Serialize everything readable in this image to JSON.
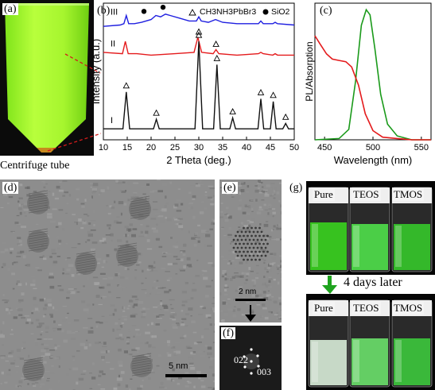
{
  "figure": {
    "panel_a": {
      "label": "(a)",
      "caption": "Centrifuge tube"
    },
    "panel_b": {
      "label": "(b)",
      "legend_triangle": "CH3NH3PbBr3",
      "legend_circle": "SiO2",
      "curve_labels": [
        "III",
        "II",
        "I"
      ]
    },
    "panel_c": {
      "label": "(c)"
    },
    "panel_d": {
      "label": "(d)",
      "scale_bar": "5 nm"
    },
    "panel_e": {
      "label": "(e)",
      "scale_bar": "2 nm"
    },
    "panel_f": {
      "label": "(f)",
      "index_1": "022",
      "index_2": "003"
    },
    "panel_g": {
      "label": "(g)",
      "vials_top": [
        "Pure",
        "TEOS",
        "TMOS"
      ],
      "vials_bottom": [
        "Pure",
        "TEOS",
        "TMOS"
      ],
      "arrow_text": "4 days later"
    }
  },
  "chart_data": [
    {
      "type": "line",
      "panel": "b",
      "xlabel": "2 Theta (deg.)",
      "ylabel": "Intensity (a.u.)",
      "xlim": [
        10,
        50
      ],
      "xticks": [
        10,
        15,
        20,
        25,
        30,
        35,
        40,
        45,
        50
      ],
      "x_tick_labels": [
        "10",
        "15",
        "20",
        "25",
        "30",
        "35",
        "40",
        "45",
        "50"
      ],
      "ylim": [
        0,
        100
      ],
      "series": [
        {
          "name": "III",
          "color": "#1f1fe0",
          "x": [
            10,
            13.5,
            14.3,
            14.8,
            15.3,
            16.5,
            18,
            20,
            21,
            22,
            23,
            24,
            26,
            28,
            29.5,
            30,
            30.5,
            32,
            33.5,
            35,
            38,
            42.5,
            43,
            43.5,
            45.5,
            46,
            46.5,
            50
          ],
          "y": [
            83,
            84,
            85,
            91,
            85,
            85,
            86,
            88,
            91,
            90,
            92,
            91,
            89,
            87,
            87,
            90,
            87,
            86,
            88,
            86,
            85,
            85,
            87,
            85,
            85,
            86,
            85,
            84
          ]
        },
        {
          "name": "II",
          "color": "#e41a1c",
          "x": [
            10,
            14,
            14.6,
            15.2,
            17,
            20,
            25,
            29,
            29.8,
            30.6,
            33,
            33.6,
            34.2,
            38,
            42.5,
            43,
            43.5,
            45.5,
            46,
            46.5,
            50
          ],
          "y": [
            64,
            63,
            72,
            63,
            63,
            62,
            63,
            64,
            75,
            64,
            63,
            66,
            63,
            62,
            63,
            64,
            63,
            62,
            63,
            62,
            62
          ]
        },
        {
          "name": "I",
          "color": "#111111",
          "x": [
            10,
            14.1,
            14.8,
            15.5,
            20.5,
            21.1,
            21.7,
            29.2,
            30.0,
            30.8,
            33.1,
            33.8,
            34.5,
            36.5,
            37.1,
            37.7,
            42.4,
            43.0,
            43.6,
            45.0,
            45.6,
            46.2,
            47.6,
            48.2,
            48.8,
            50
          ],
          "y": [
            8,
            8,
            35,
            8,
            8,
            15,
            8,
            8,
            72,
            8,
            8,
            55,
            8,
            8,
            16,
            8,
            8,
            30,
            8,
            8,
            28,
            8,
            8,
            12,
            8,
            8
          ]
        }
      ],
      "triangle_markers_x": [
        14.8,
        21.1,
        30.0,
        33.8,
        37.1,
        43.0,
        45.6,
        48.2
      ],
      "circle_markers_x": [
        18.5,
        22.5
      ]
    },
    {
      "type": "line",
      "panel": "c",
      "xlabel": "Wavelength (nm)",
      "ylabel": "PL/Absorption",
      "xlim": [
        440,
        560
      ],
      "xticks": [
        450,
        500,
        550
      ],
      "x_tick_labels": [
        "450",
        "500",
        "550"
      ],
      "ylim": [
        0,
        1.05
      ],
      "series": [
        {
          "name": "PL",
          "color": "#1a9a1a",
          "x": [
            440,
            465,
            475,
            482,
            488,
            493,
            497,
            502,
            508,
            515,
            525,
            540,
            560
          ],
          "y": [
            0.0,
            0.01,
            0.08,
            0.45,
            0.88,
            1.0,
            0.96,
            0.7,
            0.35,
            0.12,
            0.03,
            0.0,
            0.0
          ]
        },
        {
          "name": "Absorption",
          "color": "#e41a1c",
          "x": [
            440,
            445,
            452,
            458,
            465,
            472,
            478,
            485,
            492,
            500,
            510,
            525,
            540,
            560
          ],
          "y": [
            0.8,
            0.74,
            0.66,
            0.62,
            0.61,
            0.6,
            0.56,
            0.42,
            0.2,
            0.07,
            0.02,
            0.01,
            0.0,
            0.0
          ]
        }
      ]
    }
  ]
}
